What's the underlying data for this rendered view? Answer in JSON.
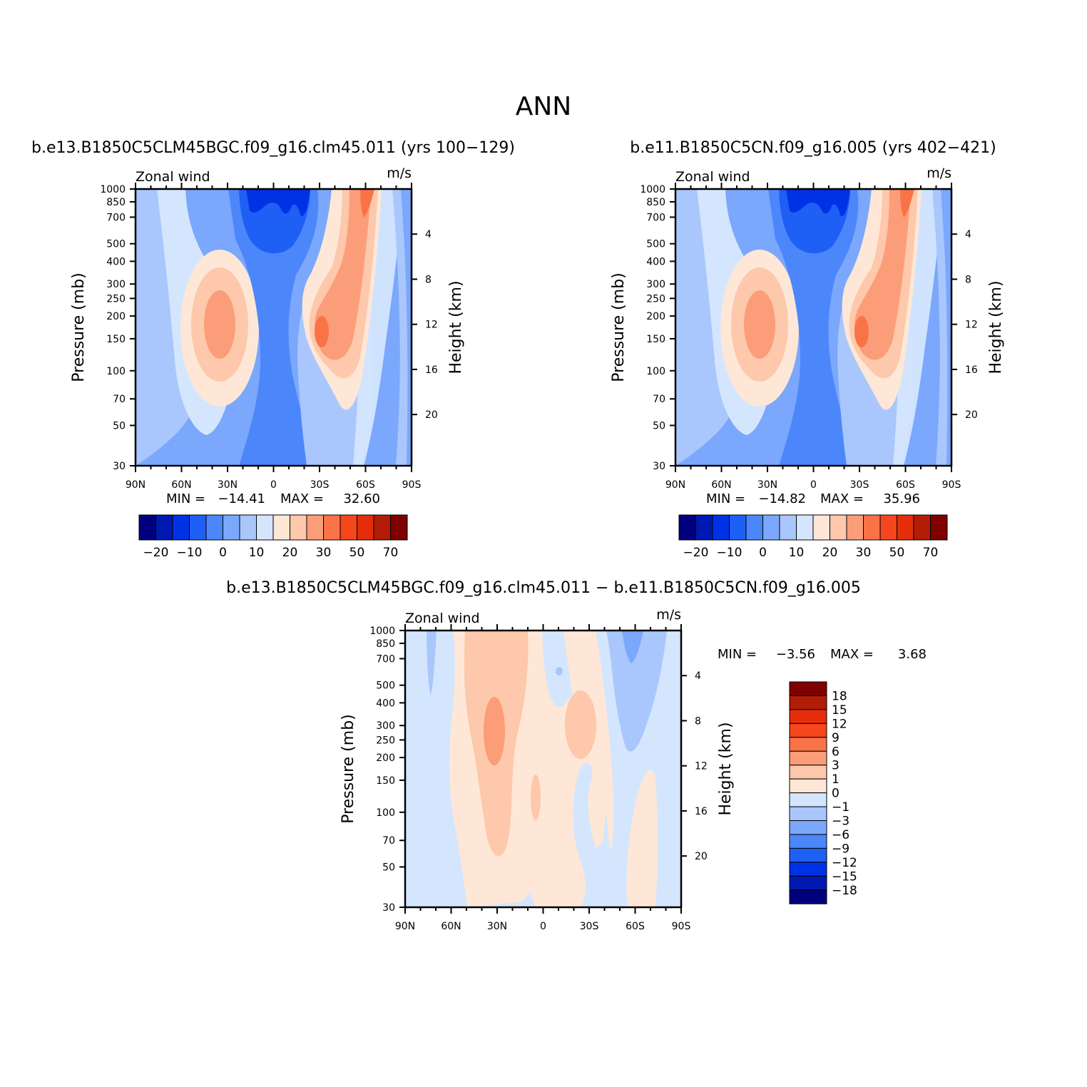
{
  "figure_title": "ANN",
  "panels": [
    {
      "title": "b.e13.B1850C5CLM45BGC.f09_g16.clm45.011 (yrs 100−129)",
      "field": "Zonal wind",
      "units": "m/s",
      "min_label": "MIN =",
      "min_value": "−14.41",
      "max_label": "MAX =",
      "max_value": "32.60"
    },
    {
      "title": "b.e11.B1850C5CN.f09_g16.005 (yrs 402−421)",
      "field": "Zonal wind",
      "units": "m/s",
      "min_label": "MIN =",
      "min_value": "−14.82",
      "max_label": "MAX =",
      "max_value": "35.96"
    },
    {
      "title": "b.e13.B1850C5CLM45BGC.f09_g16.clm45.011 − b.e11.B1850C5CN.f09_g16.005",
      "field": "Zonal wind",
      "units": "m/s",
      "min_label": "MIN =",
      "min_value": "−3.56",
      "max_label": "MAX =",
      "max_value": "3.68"
    }
  ],
  "axes": {
    "y_label": "Pressure (mb)",
    "y_right_label": "Height (km)",
    "pressure_ticks": [
      "30",
      "50",
      "70",
      "100",
      "150",
      "200",
      "250",
      "300",
      "400",
      "500",
      "700",
      "850",
      "1000"
    ],
    "height_ticks": [
      "20",
      "16",
      "12",
      "8",
      "4"
    ],
    "lat_ticks": [
      "90N",
      "60N",
      "30N",
      "0",
      "30S",
      "60S",
      "90S"
    ]
  },
  "colorbar_main": {
    "colors": [
      "#00007f",
      "#0019b2",
      "#0032e5",
      "#1e5ff5",
      "#4b87fa",
      "#7ba7fc",
      "#a9c7fd",
      "#d4e6fe",
      "#fee7d6",
      "#fdc8ab",
      "#fc9d7a",
      "#fa7346",
      "#f5461e",
      "#e52d0b",
      "#b21d06",
      "#7f0000"
    ],
    "labels": [
      "−20",
      "−10",
      "0",
      "10",
      "20",
      "30",
      "50",
      "70"
    ]
  },
  "colorbar_diff": {
    "colors": [
      "#7f0000",
      "#b21d06",
      "#e52d0b",
      "#f5461e",
      "#fa7346",
      "#fc9d7a",
      "#fdc8ab",
      "#fee7d6",
      "#d4e6fe",
      "#a9c7fd",
      "#7ba7fc",
      "#4b87fa",
      "#1e5ff5",
      "#0032e5",
      "#0019b2",
      "#00007f"
    ],
    "labels": [
      "18",
      "15",
      "12",
      "9",
      "6",
      "3",
      "1",
      "0",
      "−1",
      "−3",
      "−6",
      "−9",
      "−12",
      "−15",
      "−18"
    ]
  },
  "chart_data": [
    {
      "type": "heatmap",
      "title": "b.e13.B1850C5CLM45BGC.f09_g16.clm45.011 (yrs 100−129)",
      "variable": "Zonal wind",
      "units": "m/s",
      "xlabel": "Latitude",
      "ylabel": "Pressure (mb)",
      "xlim": [
        "90N",
        "90S"
      ],
      "ylim": [
        1000,
        30
      ],
      "min": -14.41,
      "max": 32.6,
      "features": [
        {
          "desc": "southern hemisphere westerly jet core",
          "lat": "~40S",
          "pressure_mb": 200,
          "approx_value": 30
        },
        {
          "desc": "northern hemisphere westerly jet core",
          "lat": "~35N",
          "pressure_mb": 200,
          "approx_value": 20
        },
        {
          "desc": "tropical stratospheric easterlies",
          "lat": "0",
          "pressure_mb": 30,
          "approx_value": -14
        }
      ]
    },
    {
      "type": "heatmap",
      "title": "b.e11.B1850C5CN.f09_g16.005 (yrs 402−421)",
      "variable": "Zonal wind",
      "units": "m/s",
      "xlabel": "Latitude",
      "ylabel": "Pressure (mb)",
      "xlim": [
        "90N",
        "90S"
      ],
      "ylim": [
        1000,
        30
      ],
      "min": -14.82,
      "max": 35.96,
      "features": [
        {
          "desc": "southern hemisphere westerly jet core",
          "lat": "~40S",
          "pressure_mb": 200,
          "approx_value": 30
        },
        {
          "desc": "northern hemisphere westerly jet core",
          "lat": "~35N",
          "pressure_mb": 200,
          "approx_value": 20
        },
        {
          "desc": "tropical stratospheric easterlies",
          "lat": "0",
          "pressure_mb": 30,
          "approx_value": -14
        }
      ]
    },
    {
      "type": "heatmap",
      "title": "b.e13.B1850C5CLM45BGC.f09_g16.clm45.011 − b.e11.B1850C5CN.f09_g16.005",
      "variable": "Zonal wind difference",
      "units": "m/s",
      "xlabel": "Latitude",
      "ylabel": "Pressure (mb)",
      "xlim": [
        "90N",
        "90S"
      ],
      "ylim": [
        1000,
        30
      ],
      "min": -3.56,
      "max": 3.68,
      "features": [
        {
          "desc": "positive maximum",
          "lat": "~30N",
          "pressure_mb": 100,
          "approx_value": 3
        },
        {
          "desc": "negative minimum",
          "lat": "~60S",
          "pressure_mb": 30,
          "approx_value": -3
        }
      ]
    }
  ]
}
